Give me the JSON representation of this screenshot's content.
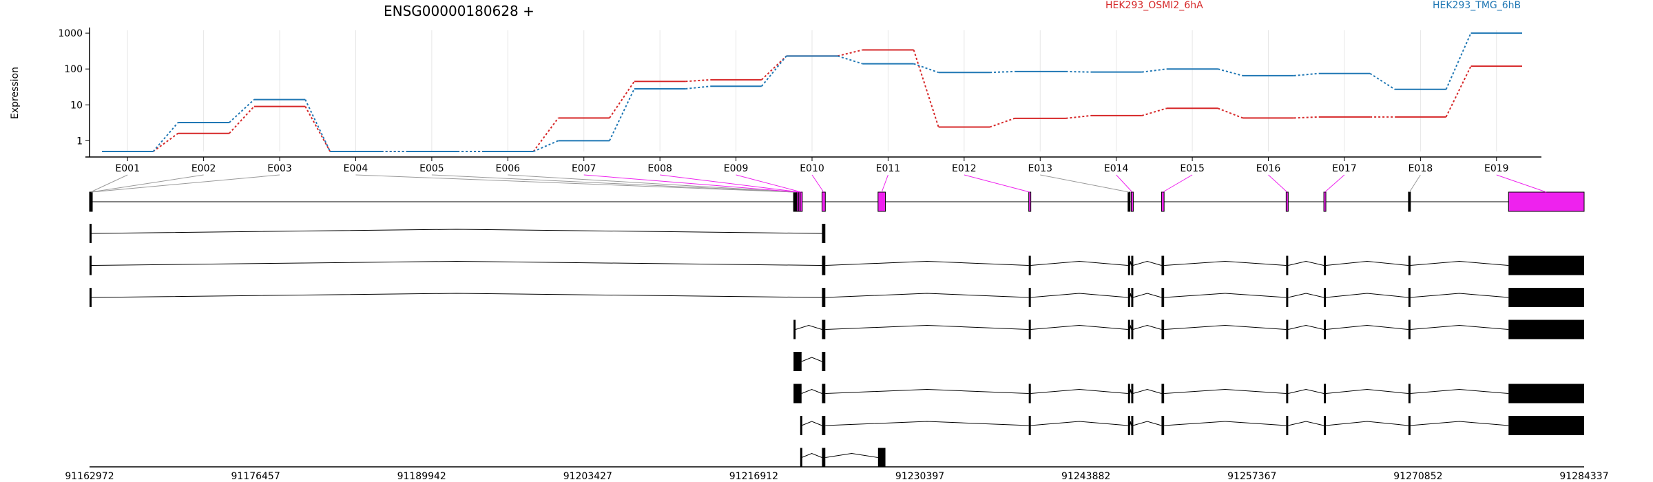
{
  "chart_data": {
    "type": "line",
    "title": "ENSG00000180628 +",
    "ylabel": "Expression",
    "yscale": "log",
    "ylim": [
      0.5,
      1200
    ],
    "y_ticks": [
      {
        "label": "1",
        "value": 1
      },
      {
        "label": "10",
        "value": 10
      },
      {
        "label": "100",
        "value": 100
      },
      {
        "label": "1000",
        "value": 1000
      }
    ],
    "grid": true,
    "legend_position": "top-right",
    "categories": [
      "E001",
      "E002",
      "E003",
      "E004",
      "E005",
      "E006",
      "E007",
      "E008",
      "E009",
      "E010",
      "E011",
      "E012",
      "E013",
      "E014",
      "E015",
      "E016",
      "E017",
      "E018",
      "E019"
    ],
    "series": [
      {
        "name": "HEK293_OSMI2_6hA",
        "color": "#d62728",
        "values": [
          0.5,
          1.6,
          9,
          0.5,
          0.5,
          0.5,
          4.3,
          45,
          50,
          230,
          340,
          2.4,
          4.2,
          5,
          8,
          4.3,
          4.6,
          4.6,
          120
        ]
      },
      {
        "name": "HEK293_TMG_6hB",
        "color": "#1f77b4",
        "values": [
          0.5,
          3.2,
          14,
          0.5,
          0.5,
          0.5,
          1.0,
          28,
          33,
          230,
          140,
          80,
          85,
          82,
          100,
          65,
          75,
          27,
          1000
        ]
      }
    ],
    "highlight_color": "#ee22ee",
    "genomic_axis": {
      "start": 91162972,
      "end": 91284337,
      "ticks": [
        "91162972",
        "91176457",
        "91189942",
        "91203427",
        "91216912",
        "91230397",
        "91243882",
        "91257367",
        "91270852",
        "91284337"
      ]
    },
    "exons": [
      {
        "id": "E001",
        "start": 91162972,
        "end": 91163080,
        "highlight": false
      },
      {
        "id": "E002",
        "start": 91163000,
        "end": 91163100,
        "highlight": false
      },
      {
        "id": "E003",
        "start": 91163030,
        "end": 91163130,
        "highlight": false
      },
      {
        "id": "E004",
        "start": 91220140,
        "end": 91220240,
        "highlight": false
      },
      {
        "id": "E005",
        "start": 91220200,
        "end": 91220300,
        "highlight": false
      },
      {
        "id": "E006",
        "start": 91220270,
        "end": 91220370,
        "highlight": false
      },
      {
        "id": "E007",
        "start": 91220420,
        "end": 91220540,
        "highlight": true
      },
      {
        "id": "E008",
        "start": 91220560,
        "end": 91220680,
        "highlight": true
      },
      {
        "id": "E009",
        "start": 91220680,
        "end": 91220790,
        "highlight": true
      },
      {
        "id": "E010",
        "start": 91222450,
        "end": 91222720,
        "highlight": true
      },
      {
        "id": "E011",
        "start": 91227000,
        "end": 91227600,
        "highlight": true
      },
      {
        "id": "E012",
        "start": 91239240,
        "end": 91239380,
        "highlight": true
      },
      {
        "id": "E013",
        "start": 91247300,
        "end": 91247450,
        "highlight": false
      },
      {
        "id": "E014",
        "start": 91247560,
        "end": 91247700,
        "highlight": true
      },
      {
        "id": "E015",
        "start": 91250020,
        "end": 91250230,
        "highlight": true
      },
      {
        "id": "E016",
        "start": 91260140,
        "end": 91260300,
        "highlight": true
      },
      {
        "id": "E017",
        "start": 91263200,
        "end": 91263360,
        "highlight": true
      },
      {
        "id": "E018",
        "start": 91270070,
        "end": 91270200,
        "highlight": false
      },
      {
        "id": "E019",
        "start": 91278200,
        "end": 91284337,
        "highlight": true
      }
    ],
    "transcripts": [
      {
        "exons": [
          [
            91162972,
            91163080
          ],
          [
            91222450,
            91222720
          ]
        ]
      },
      {
        "exons": [
          [
            91162972,
            91163080
          ],
          [
            91222450,
            91222720
          ],
          [
            91239240,
            91239380
          ],
          [
            91247300,
            91247450
          ],
          [
            91247560,
            91247700
          ],
          [
            91250020,
            91250230
          ],
          [
            91260140,
            91260300
          ],
          [
            91263200,
            91263360
          ],
          [
            91270070,
            91270200
          ],
          [
            91278200,
            91284337
          ]
        ]
      },
      {
        "exons": [
          [
            91162972,
            91163080
          ],
          [
            91222450,
            91222720
          ],
          [
            91239240,
            91239380
          ],
          [
            91247300,
            91247450
          ],
          [
            91247560,
            91247700
          ],
          [
            91250020,
            91250230
          ],
          [
            91260140,
            91260300
          ],
          [
            91263200,
            91263360
          ],
          [
            91270070,
            91270200
          ],
          [
            91278200,
            91284337
          ]
        ]
      },
      {
        "exons": [
          [
            91220140,
            91220300
          ],
          [
            91222450,
            91222720
          ],
          [
            91239240,
            91239380
          ],
          [
            91247300,
            91247450
          ],
          [
            91247560,
            91247700
          ],
          [
            91250020,
            91250230
          ],
          [
            91260140,
            91260300
          ],
          [
            91263200,
            91263360
          ],
          [
            91270070,
            91270200
          ],
          [
            91278200,
            91284337
          ]
        ]
      },
      {
        "exons": [
          [
            91220140,
            91220790
          ],
          [
            91222450,
            91222720
          ]
        ]
      },
      {
        "exons": [
          [
            91220140,
            91220790
          ],
          [
            91222450,
            91222720
          ],
          [
            91239240,
            91239380
          ],
          [
            91247300,
            91247450
          ],
          [
            91247560,
            91247700
          ],
          [
            91250020,
            91250230
          ],
          [
            91260140,
            91260300
          ],
          [
            91263200,
            91263360
          ],
          [
            91270070,
            91270200
          ],
          [
            91278200,
            91284337
          ]
        ]
      },
      {
        "exons": [
          [
            91220680,
            91220790
          ],
          [
            91222450,
            91222720
          ],
          [
            91239240,
            91239380
          ],
          [
            91247300,
            91247450
          ],
          [
            91247560,
            91247700
          ],
          [
            91250020,
            91250230
          ],
          [
            91260140,
            91260300
          ],
          [
            91263200,
            91263360
          ],
          [
            91270070,
            91270200
          ],
          [
            91278200,
            91284337
          ]
        ]
      },
      {
        "exons": [
          [
            91220680,
            91220790
          ],
          [
            91222450,
            91222720
          ],
          [
            91227000,
            91227600
          ]
        ]
      }
    ]
  }
}
